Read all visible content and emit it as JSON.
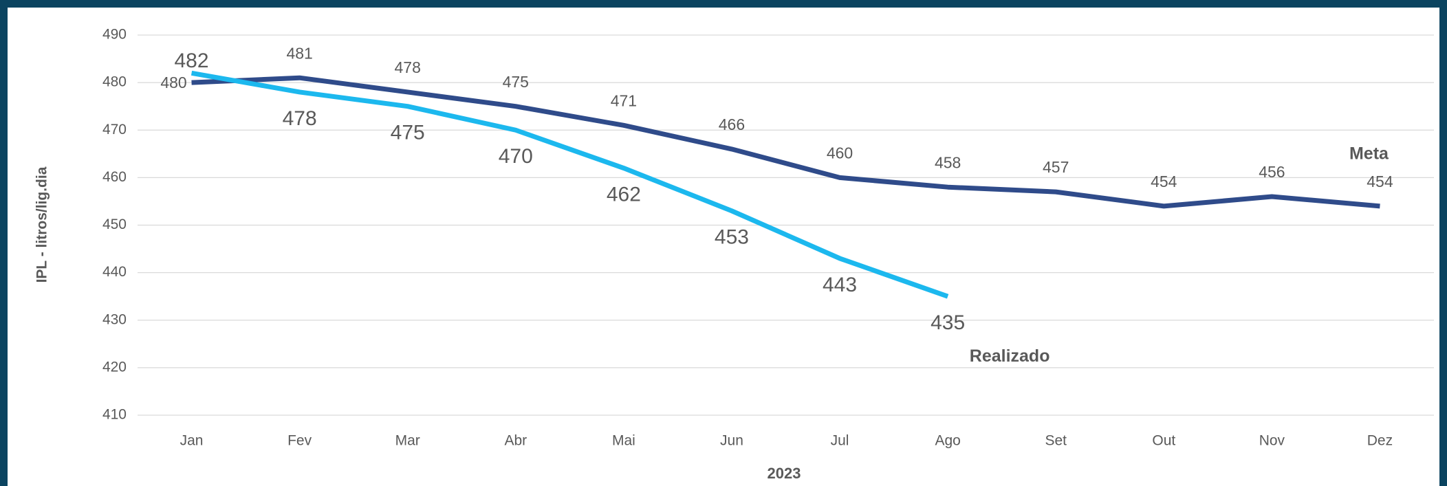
{
  "chart_data": {
    "type": "line",
    "x_label": "2023",
    "y_label": "IPL - litros/lig.dia",
    "categories": [
      "Jan",
      "Fev",
      "Mar",
      "Abr",
      "Mai",
      "Jun",
      "Jul",
      "Ago",
      "Set",
      "Out",
      "Nov",
      "Dez"
    ],
    "series": [
      {
        "name": "Meta",
        "color": "#2f4b8a",
        "values": [
          480,
          481,
          478,
          475,
          471,
          466,
          460,
          458,
          457,
          454,
          456,
          454
        ]
      },
      {
        "name": "Realizado",
        "color": "#1cb8ee",
        "values": [
          482,
          478,
          475,
          470,
          462,
          453,
          443,
          435,
          null,
          null,
          null,
          null
        ]
      }
    ],
    "ylim": [
      410,
      490
    ],
    "yticks": [
      410,
      420,
      430,
      440,
      450,
      460,
      470,
      480,
      490
    ],
    "grid": true
  }
}
